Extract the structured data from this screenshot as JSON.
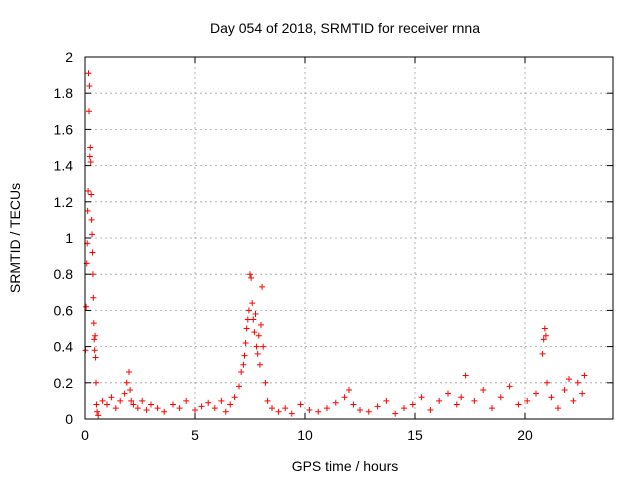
{
  "chart_data": {
    "type": "scatter",
    "title": "Day 054 of 2018, SRMTID for receiver rnna",
    "xlabel": "GPS time / hours",
    "ylabel": "SRMTID / TECUs",
    "xlim": [
      0,
      24
    ],
    "ylim": [
      0,
      2
    ],
    "xticks": [
      0,
      5,
      10,
      15,
      20
    ],
    "xtick_labels": [
      "0",
      "5",
      "10",
      "15",
      "20"
    ],
    "yticks": [
      0,
      0.2,
      0.4,
      0.6,
      0.8,
      1,
      1.2,
      1.4,
      1.6,
      1.8,
      2
    ],
    "ytick_labels": [
      "0",
      "0.2",
      "0.4",
      "0.6",
      "0.8",
      "1",
      "1.2",
      "1.4",
      "1.6",
      "1.8",
      "2"
    ],
    "grid": true,
    "marker": "plus",
    "color": "#ff0000",
    "series": [
      {
        "name": "SRMTID",
        "x": [
          0.02,
          0.05,
          0.08,
          0.1,
          0.12,
          0.14,
          0.16,
          0.18,
          0.2,
          0.22,
          0.24,
          0.26,
          0.28,
          0.3,
          0.32,
          0.34,
          0.36,
          0.38,
          0.4,
          0.42,
          0.44,
          0.46,
          0.48,
          0.5,
          0.52,
          0.55,
          0.6,
          0.8,
          1.0,
          1.2,
          1.4,
          1.6,
          1.8,
          1.9,
          2.0,
          2.05,
          2.1,
          2.2,
          2.4,
          2.6,
          2.8,
          3.0,
          3.3,
          3.6,
          4.0,
          4.3,
          4.6,
          5.0,
          5.3,
          5.6,
          5.9,
          6.2,
          6.4,
          6.6,
          6.8,
          7.0,
          7.1,
          7.2,
          7.25,
          7.3,
          7.35,
          7.4,
          7.45,
          7.5,
          7.55,
          7.6,
          7.65,
          7.7,
          7.75,
          7.8,
          7.85,
          7.9,
          7.95,
          8.0,
          8.05,
          8.1,
          8.2,
          8.3,
          8.5,
          8.8,
          9.1,
          9.4,
          9.8,
          10.2,
          10.6,
          11.0,
          11.4,
          11.8,
          12.0,
          12.2,
          12.5,
          12.9,
          13.3,
          13.7,
          14.1,
          14.5,
          14.9,
          15.3,
          15.7,
          16.1,
          16.5,
          16.9,
          17.1,
          17.3,
          17.7,
          18.1,
          18.5,
          18.9,
          19.3,
          19.7,
          20.1,
          20.5,
          20.8,
          20.85,
          20.9,
          20.95,
          21.0,
          21.2,
          21.5,
          21.8,
          22.0,
          22.2,
          22.4,
          22.6,
          22.7
        ],
        "y": [
          0.38,
          0.62,
          0.86,
          0.97,
          1.15,
          1.26,
          1.91,
          1.7,
          1.84,
          1.45,
          1.5,
          1.42,
          1.24,
          1.1,
          1.02,
          0.92,
          0.8,
          0.67,
          0.53,
          0.44,
          0.38,
          0.46,
          0.34,
          0.2,
          0.08,
          0.04,
          0.02,
          0.1,
          0.08,
          0.12,
          0.06,
          0.1,
          0.14,
          0.2,
          0.26,
          0.16,
          0.1,
          0.08,
          0.06,
          0.1,
          0.05,
          0.08,
          0.06,
          0.04,
          0.08,
          0.06,
          0.1,
          0.05,
          0.07,
          0.09,
          0.06,
          0.1,
          0.04,
          0.08,
          0.12,
          0.18,
          0.26,
          0.3,
          0.35,
          0.42,
          0.5,
          0.55,
          0.6,
          0.8,
          0.78,
          0.64,
          0.55,
          0.48,
          0.58,
          0.4,
          0.36,
          0.46,
          0.3,
          0.52,
          0.73,
          0.4,
          0.2,
          0.1,
          0.06,
          0.04,
          0.06,
          0.03,
          0.08,
          0.05,
          0.04,
          0.06,
          0.09,
          0.12,
          0.16,
          0.08,
          0.05,
          0.04,
          0.07,
          0.1,
          0.03,
          0.06,
          0.08,
          0.12,
          0.05,
          0.1,
          0.14,
          0.08,
          0.12,
          0.24,
          0.1,
          0.16,
          0.06,
          0.12,
          0.18,
          0.08,
          0.1,
          0.14,
          0.36,
          0.44,
          0.5,
          0.46,
          0.2,
          0.12,
          0.06,
          0.16,
          0.22,
          0.1,
          0.2,
          0.14,
          0.24
        ]
      }
    ]
  }
}
